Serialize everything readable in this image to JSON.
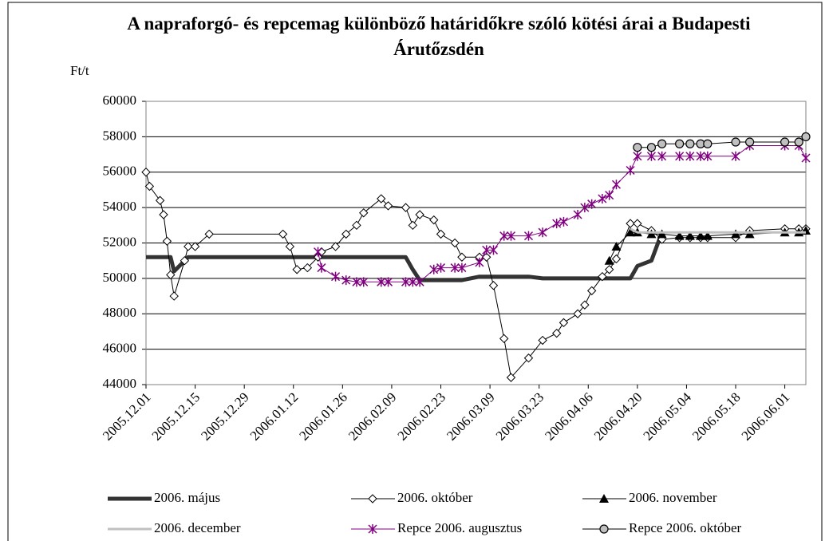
{
  "chart_data": {
    "type": "line",
    "title": "A napraforgó- és repcemag különböző határidőkre szóló kötési árai a Budapesti Árutőzsdén",
    "y_label": "Ft/t",
    "x": [
      "2005.12.01",
      "2005.12.02",
      "2005.12.05",
      "2005.12.06",
      "2005.12.07",
      "2005.12.08",
      "2005.12.09",
      "2005.12.12",
      "2005.12.13",
      "2005.12.15",
      "2005.12.19",
      "2006.01.09",
      "2006.01.11",
      "2006.01.13",
      "2006.01.16",
      "2006.01.19",
      "2006.01.20",
      "2006.01.24",
      "2006.01.27",
      "2006.01.30",
      "2006.02.01",
      "2006.02.06",
      "2006.02.08",
      "2006.02.13",
      "2006.02.15",
      "2006.02.17",
      "2006.02.21",
      "2006.02.23",
      "2006.02.27",
      "2006.03.01",
      "2006.03.06",
      "2006.03.08",
      "2006.03.10",
      "2006.03.13",
      "2006.03.15",
      "2006.03.20",
      "2006.03.24",
      "2006.03.28",
      "2006.03.30",
      "2006.04.03",
      "2006.04.05",
      "2006.04.07",
      "2006.04.10",
      "2006.04.12",
      "2006.04.14",
      "2006.04.18",
      "2006.04.20",
      "2006.04.24",
      "2006.04.27",
      "2006.05.02",
      "2006.05.05",
      "2006.05.08",
      "2006.05.10",
      "2006.05.18",
      "2006.05.22",
      "2006.06.01",
      "2006.06.05",
      "2006.06.07"
    ],
    "xlim": [
      "2005.12.01",
      "2006.06.07"
    ],
    "xticks": [
      "2005.12.01",
      "2005.12.15",
      "2005.12.29",
      "2006.01.12",
      "2006.01.26",
      "2006.02.09",
      "2006.02.23",
      "2006.03.09",
      "2006.03.23",
      "2006.04.06",
      "2006.04.20",
      "2006.05.04",
      "2006.05.18",
      "2006.06.01"
    ],
    "ylim": [
      44000,
      60000
    ],
    "yticks": [
      44000,
      46000,
      48000,
      50000,
      52000,
      54000,
      56000,
      58000,
      60000
    ],
    "grid": true,
    "legend": "bottom",
    "series": [
      {
        "name": "2006. május",
        "color": "#333333",
        "width": 5,
        "marker": "none",
        "values": [
          51200,
          51200,
          51200,
          51200,
          51200,
          51200,
          50400,
          51000,
          51200,
          51200,
          51200,
          51200,
          51200,
          51200,
          51200,
          51200,
          51200,
          51200,
          51200,
          51200,
          51200,
          51200,
          51200,
          51200,
          50500,
          49900,
          49900,
          49900,
          49900,
          49900,
          50100,
          50100,
          50100,
          50100,
          50100,
          50100,
          50000,
          50000,
          50000,
          50000,
          50000,
          50000,
          50000,
          50000,
          50000,
          50000,
          50700,
          51000,
          52600,
          null,
          null,
          null,
          null,
          null,
          null,
          null,
          null,
          null
        ]
      },
      {
        "name": "2006. október",
        "color": "#000000",
        "width": 1,
        "marker": "diamond",
        "values": [
          56000,
          55200,
          54400,
          53600,
          52100,
          50200,
          49000,
          51000,
          51800,
          51800,
          52500,
          52500,
          51800,
          50500,
          50600,
          51200,
          51500,
          51800,
          52500,
          53000,
          53700,
          54500,
          54100,
          54000,
          53000,
          53600,
          53300,
          52500,
          52000,
          51200,
          51200,
          51200,
          49600,
          46600,
          44400,
          45500,
          46500,
          46900,
          47500,
          48000,
          48500,
          49300,
          50100,
          50500,
          51100,
          53100,
          53100,
          52700,
          52200,
          52300,
          52300,
          52300,
          52300,
          52300,
          52700,
          52800,
          52800,
          52800
        ]
      },
      {
        "name": "2006. november",
        "color": "#000000",
        "width": 1,
        "marker": "triangle",
        "values": [
          null,
          null,
          null,
          null,
          null,
          null,
          null,
          null,
          null,
          null,
          null,
          null,
          null,
          null,
          null,
          null,
          null,
          null,
          null,
          null,
          null,
          null,
          null,
          null,
          null,
          null,
          null,
          null,
          null,
          null,
          null,
          null,
          null,
          null,
          null,
          null,
          null,
          null,
          null,
          null,
          null,
          null,
          null,
          51000,
          51800,
          52600,
          52600,
          52500,
          52500,
          52400,
          52400,
          52400,
          52400,
          52500,
          52500,
          52600,
          52600,
          52700
        ]
      },
      {
        "name": "2006. december",
        "color": "#c0c0c0",
        "width": 3,
        "marker": "none",
        "values": [
          null,
          null,
          null,
          null,
          null,
          null,
          null,
          null,
          null,
          null,
          null,
          null,
          null,
          null,
          null,
          null,
          null,
          null,
          null,
          null,
          null,
          null,
          null,
          null,
          null,
          null,
          null,
          null,
          null,
          null,
          null,
          null,
          null,
          null,
          null,
          null,
          null,
          null,
          null,
          null,
          null,
          null,
          null,
          null,
          null,
          52800,
          52600,
          52600,
          52600,
          52600,
          52600,
          52600,
          52600,
          52600,
          52600,
          52600,
          52600,
          52600
        ]
      },
      {
        "name": "Repce 2006. augusztus",
        "color": "#800080",
        "width": 1,
        "marker": "star",
        "values": [
          null,
          null,
          null,
          null,
          null,
          null,
          null,
          null,
          null,
          null,
          null,
          null,
          null,
          null,
          null,
          51500,
          50600,
          50100,
          49900,
          49800,
          49800,
          49800,
          49800,
          49800,
          49800,
          49800,
          50500,
          50600,
          50600,
          50600,
          50900,
          51600,
          51600,
          52400,
          52400,
          52400,
          52600,
          53100,
          53200,
          53600,
          54000,
          54200,
          54500,
          54700,
          55300,
          56100,
          56900,
          56900,
          56900,
          56900,
          56900,
          56900,
          56900,
          56900,
          57500,
          57500,
          57500,
          56800
        ]
      },
      {
        "name": "Repce 2006. október",
        "color": "#000000",
        "fill": "#c0c0c0",
        "width": 1,
        "marker": "circle",
        "values": [
          null,
          null,
          null,
          null,
          null,
          null,
          null,
          null,
          null,
          null,
          null,
          null,
          null,
          null,
          null,
          null,
          null,
          null,
          null,
          null,
          null,
          null,
          null,
          null,
          null,
          null,
          null,
          null,
          null,
          null,
          null,
          null,
          null,
          null,
          null,
          null,
          null,
          null,
          null,
          null,
          null,
          null,
          null,
          null,
          null,
          null,
          57400,
          57400,
          57600,
          57600,
          57600,
          57600,
          57600,
          57700,
          57700,
          57700,
          57700,
          58000
        ]
      }
    ]
  }
}
